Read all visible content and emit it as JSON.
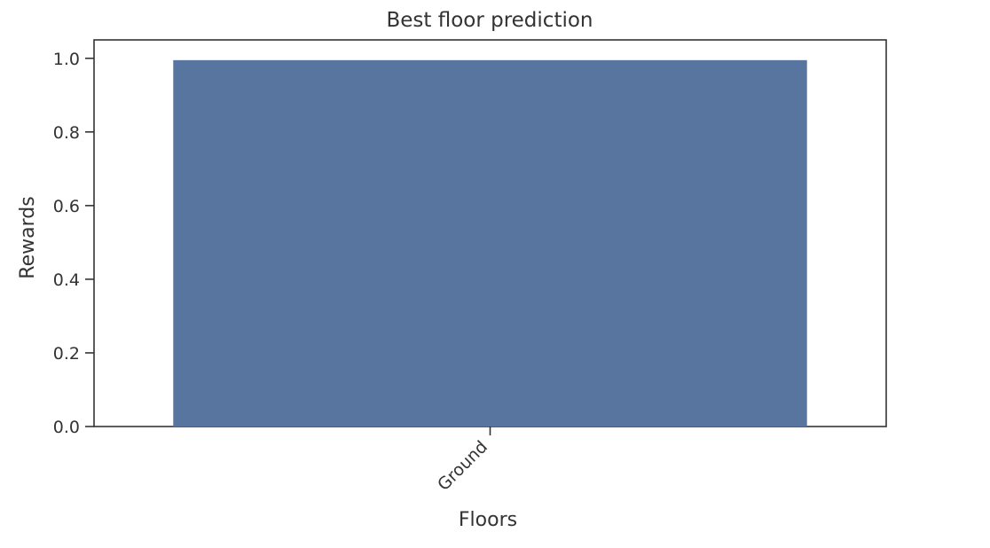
{
  "chart_data": {
    "type": "bar",
    "title": "Best floor prediction",
    "xlabel": "Floors",
    "ylabel": "Rewards",
    "categories": [
      "Ground"
    ],
    "values": [
      0.995
    ],
    "ylim": [
      0,
      1.05
    ],
    "yticks": [
      0.0,
      0.2,
      0.4,
      0.6,
      0.8,
      1.0
    ],
    "ytick_labels": [
      "0.0",
      "0.2",
      "0.4",
      "0.6",
      "0.8",
      "1.0"
    ],
    "xtick_rotation": 45,
    "grid": false,
    "legend": "none",
    "colors": {
      "bar": "#5875a0",
      "axes": "#333333",
      "text": "#333333",
      "background": "#ffffff"
    }
  }
}
